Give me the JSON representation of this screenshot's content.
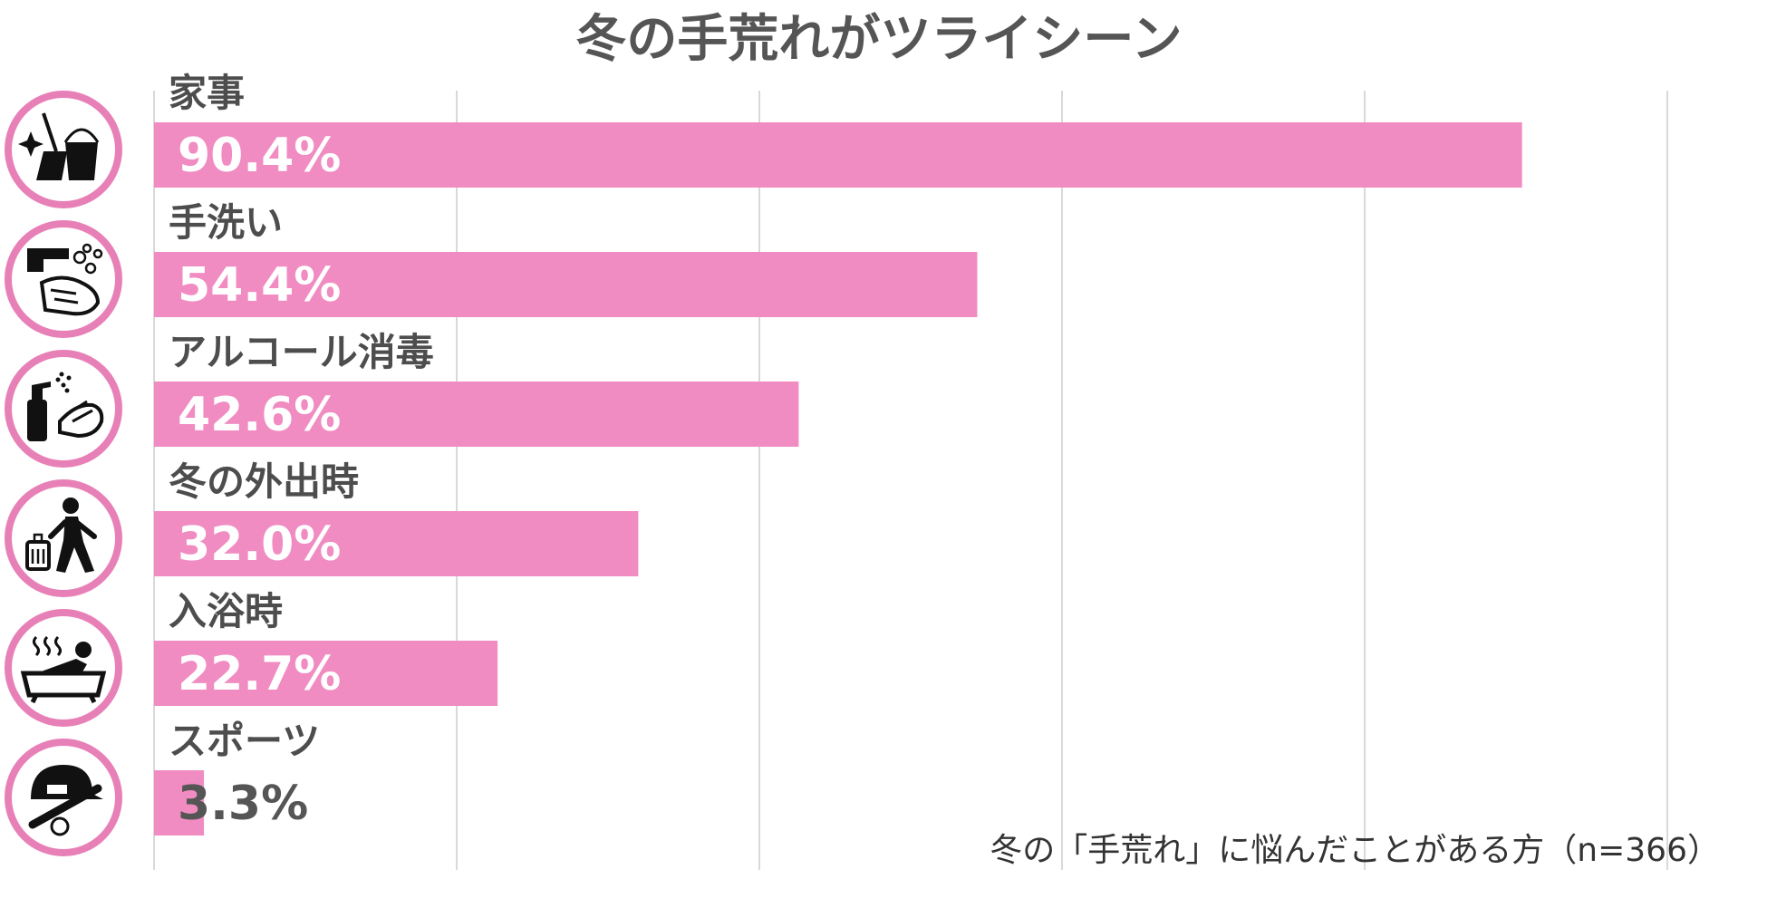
{
  "chart_data": {
    "type": "bar",
    "orientation": "horizontal",
    "title": "冬の手荒れがツライシーン",
    "categories": [
      "家事",
      "手洗い",
      "アルコール消毒",
      "冬の外出時",
      "入浴時",
      "スポーツ"
    ],
    "values": [
      90.4,
      54.4,
      42.6,
      32.0,
      22.7,
      3.3
    ],
    "value_labels": [
      "90.4%",
      "54.4%",
      "42.6%",
      "32.0%",
      "22.7%",
      "3.3%"
    ],
    "icons": [
      "cleaning-icon",
      "handwashing-icon",
      "sanitizer-spray-icon",
      "walking-with-suitcase-icon",
      "bathing-icon",
      "baseball-icon"
    ],
    "xlim": [
      0,
      100
    ],
    "grid": true,
    "bar_color": "#f08cc2",
    "icon_ring_color": "#e880b8",
    "annotation": "冬の「手荒れ」に悩んだことがある方（n=366）"
  }
}
